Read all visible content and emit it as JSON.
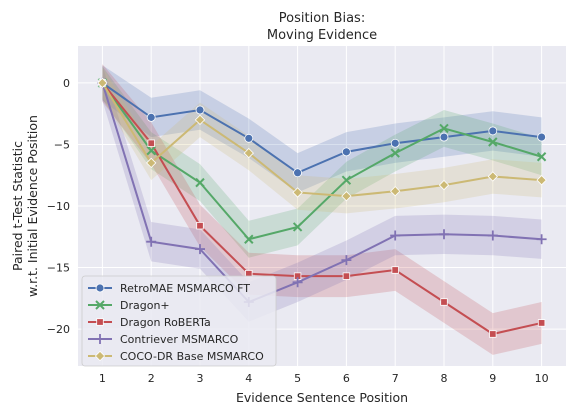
{
  "chart_data": {
    "type": "line",
    "title": [
      "Position Bias:",
      "Moving Evidence"
    ],
    "xlabel": "Evidence Sentence Position",
    "ylabel": [
      "Paired t-Test Statistic",
      "w.r.t. Initial Evidence Position"
    ],
    "x": [
      1,
      2,
      3,
      4,
      5,
      6,
      7,
      8,
      9,
      10
    ],
    "xlim": [
      0.5,
      10.5
    ],
    "ylim": [
      -23,
      3
    ],
    "y_ticks": [
      0,
      -5,
      -10,
      -15,
      -20
    ],
    "y_tick_labels": [
      "0",
      "−5",
      "−10",
      "−15",
      "−20"
    ],
    "grid": true,
    "legend_position": "lower-left",
    "series": [
      {
        "name": "RetroMAE MSMARCO FT",
        "color": "#4c72b0",
        "marker": "circle",
        "values": [
          0,
          -2.8,
          -2.2,
          -4.5,
          -7.3,
          -5.6,
          -4.9,
          -4.4,
          -3.9,
          -4.4
        ],
        "band": 1.6
      },
      {
        "name": "Dragon+",
        "color": "#55a868",
        "marker": "x",
        "values": [
          0,
          -5.5,
          -8.1,
          -12.7,
          -11.7,
          -7.9,
          -5.7,
          -3.7,
          -4.8,
          -6.0
        ],
        "band": 1.5
      },
      {
        "name": "Dragon RoBERTa",
        "color": "#c44e52",
        "marker": "square",
        "values": [
          0,
          -4.9,
          -11.6,
          -15.5,
          -15.7,
          -15.7,
          -15.2,
          -17.8,
          -20.4,
          -19.5
        ],
        "band": 1.7
      },
      {
        "name": "Contriever MSMARCO",
        "color": "#8172b3",
        "marker": "plus",
        "values": [
          0,
          -12.9,
          -13.5,
          -17.8,
          -16.2,
          -14.4,
          -12.4,
          -12.3,
          -12.4,
          -12.7
        ],
        "band": 1.6
      },
      {
        "name": "COCO-DR Base MSMARCO",
        "color": "#ccb974",
        "marker": "diamond",
        "values": [
          0,
          -6.5,
          -3.0,
          -5.7,
          -8.9,
          -9.2,
          -8.8,
          -8.3,
          -7.6,
          -7.9
        ],
        "band": 1.4
      }
    ]
  }
}
